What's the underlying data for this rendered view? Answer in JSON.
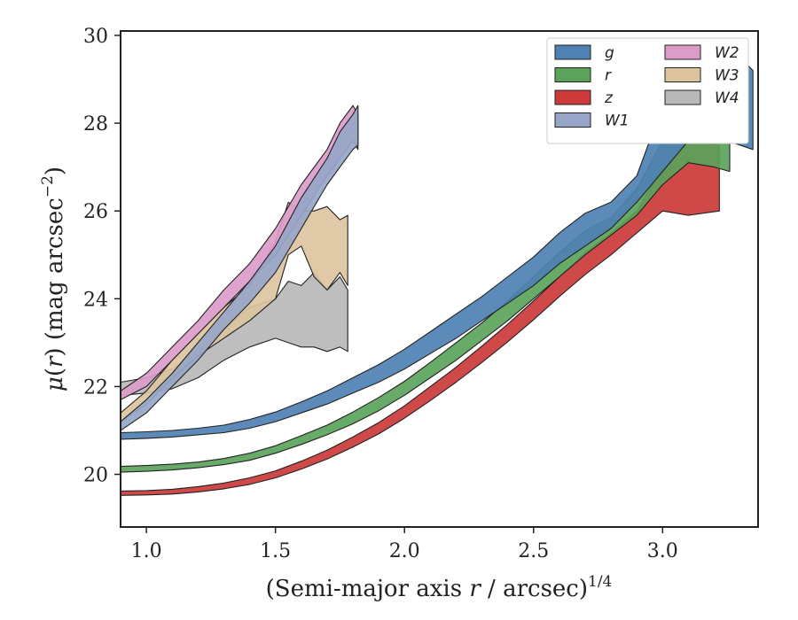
{
  "chart_data": {
    "type": "area",
    "xlabel": "(Semi-major axis r / arcsec)^1/4",
    "ylabel": "μ(r) (mag arcsec^−2)",
    "xlim": [
      0.9,
      3.37
    ],
    "ylim": [
      30.1,
      18.8
    ],
    "y_inverted": true,
    "xticks": [
      {
        "value": 1.0,
        "label": "1.0"
      },
      {
        "value": 1.5,
        "label": "1.5"
      },
      {
        "value": 2.0,
        "label": "2.0"
      },
      {
        "value": 2.5,
        "label": "2.5"
      },
      {
        "value": 3.0,
        "label": "3.0"
      }
    ],
    "yticks": [
      {
        "value": 20,
        "label": "20"
      },
      {
        "value": 22,
        "label": "22"
      },
      {
        "value": 24,
        "label": "24"
      },
      {
        "value": 26,
        "label": "26"
      },
      {
        "value": 28,
        "label": "28"
      },
      {
        "value": 30,
        "label": "30"
      }
    ],
    "grid": false,
    "legend_position": "top-right",
    "legend_columns": 2,
    "series": [
      {
        "name": "g",
        "color": "#4f81b3",
        "x": [
          0.9,
          1.0,
          1.1,
          1.2,
          1.3,
          1.4,
          1.5,
          1.6,
          1.7,
          1.8,
          1.9,
          2.0,
          2.1,
          2.2,
          2.3,
          2.4,
          2.5,
          2.6,
          2.7,
          2.8,
          2.9,
          3.0,
          3.1,
          3.2,
          3.3,
          3.35
        ],
        "lo": [
          20.8,
          20.82,
          20.85,
          20.9,
          20.95,
          21.05,
          21.2,
          21.4,
          21.6,
          21.85,
          22.1,
          22.4,
          22.75,
          23.1,
          23.5,
          23.9,
          24.3,
          24.8,
          25.2,
          25.6,
          26.2,
          26.9,
          27.6,
          27.7,
          27.5,
          27.4
        ],
        "hi": [
          20.95,
          20.97,
          21.0,
          21.05,
          21.12,
          21.25,
          21.42,
          21.65,
          21.9,
          22.2,
          22.5,
          22.85,
          23.25,
          23.65,
          24.05,
          24.5,
          24.95,
          25.5,
          25.95,
          26.2,
          26.8,
          28.4,
          29.2,
          29.4,
          29.5,
          29.2
        ]
      },
      {
        "name": "r",
        "color": "#5ba35b",
        "x": [
          0.9,
          1.0,
          1.1,
          1.2,
          1.3,
          1.4,
          1.5,
          1.6,
          1.7,
          1.8,
          1.9,
          2.0,
          2.1,
          2.2,
          2.3,
          2.4,
          2.5,
          2.6,
          2.7,
          2.8,
          2.9,
          3.0,
          3.1,
          3.2,
          3.26
        ],
        "lo": [
          20.05,
          20.07,
          20.1,
          20.15,
          20.22,
          20.32,
          20.48,
          20.68,
          20.9,
          21.15,
          21.45,
          21.8,
          22.2,
          22.6,
          23.05,
          23.5,
          24.0,
          24.5,
          25.0,
          25.45,
          25.9,
          26.6,
          27.1,
          27.0,
          26.9
        ],
        "hi": [
          20.18,
          20.2,
          20.23,
          20.28,
          20.36,
          20.48,
          20.65,
          20.88,
          21.12,
          21.42,
          21.75,
          22.12,
          22.55,
          23.0,
          23.45,
          23.95,
          24.5,
          25.05,
          25.55,
          25.85,
          26.5,
          27.6,
          28.4,
          28.5,
          28.2
        ]
      },
      {
        "name": "z",
        "color": "#cc3a3a",
        "x": [
          0.9,
          1.0,
          1.1,
          1.2,
          1.3,
          1.4,
          1.5,
          1.6,
          1.7,
          1.8,
          1.9,
          2.0,
          2.1,
          2.2,
          2.3,
          2.4,
          2.5,
          2.6,
          2.7,
          2.8,
          2.9,
          3.0,
          3.1,
          3.22
        ],
        "lo": [
          19.52,
          19.53,
          19.55,
          19.6,
          19.67,
          19.77,
          19.92,
          20.12,
          20.35,
          20.62,
          20.92,
          21.28,
          21.68,
          22.1,
          22.55,
          23.02,
          23.52,
          24.05,
          24.55,
          25.0,
          25.5,
          26.0,
          25.9,
          26.0
        ],
        "hi": [
          19.62,
          19.63,
          19.66,
          19.72,
          19.8,
          19.92,
          20.08,
          20.3,
          20.55,
          20.85,
          21.18,
          21.56,
          22.0,
          22.44,
          22.92,
          23.42,
          23.95,
          24.5,
          25.05,
          25.5,
          26.0,
          27.0,
          27.6,
          27.5
        ]
      },
      {
        "name": "W1",
        "color": "#97a6c8",
        "x": [
          0.9,
          1.0,
          1.1,
          1.2,
          1.3,
          1.4,
          1.5,
          1.6,
          1.7,
          1.75,
          1.8,
          1.82
        ],
        "lo": [
          21.0,
          21.4,
          22.0,
          22.6,
          23.3,
          23.9,
          24.6,
          25.6,
          26.6,
          27.0,
          27.4,
          27.5
        ],
        "hi": [
          21.2,
          21.7,
          22.3,
          23.0,
          23.7,
          24.4,
          25.2,
          26.3,
          27.2,
          27.8,
          28.2,
          28.4
        ]
      },
      {
        "name": "W2",
        "color": "#dc9cc9",
        "x": [
          0.9,
          1.0,
          1.1,
          1.2,
          1.3,
          1.4,
          1.5,
          1.6,
          1.7,
          1.75,
          1.8,
          1.82
        ],
        "lo": [
          21.7,
          22.0,
          22.6,
          23.2,
          23.8,
          24.4,
          25.0,
          25.9,
          26.8,
          27.2,
          27.6,
          27.4
        ],
        "hi": [
          21.9,
          22.3,
          22.9,
          23.5,
          24.2,
          24.8,
          25.6,
          26.6,
          27.4,
          28.0,
          28.4,
          28.2
        ]
      },
      {
        "name": "W3",
        "color": "#ddc49e",
        "x": [
          0.9,
          1.0,
          1.1,
          1.2,
          1.3,
          1.4,
          1.5,
          1.55,
          1.6,
          1.65,
          1.7,
          1.75,
          1.78
        ],
        "lo": [
          21.2,
          21.6,
          22.2,
          22.7,
          23.1,
          23.5,
          24.0,
          25.0,
          25.2,
          24.5,
          24.2,
          24.6,
          24.3
        ],
        "hi": [
          21.4,
          21.9,
          22.6,
          23.2,
          23.8,
          24.3,
          25.3,
          26.2,
          26.0,
          26.0,
          26.1,
          25.8,
          25.9
        ]
      },
      {
        "name": "W4",
        "color": "#b9b9b9",
        "x": [
          0.9,
          1.0,
          1.1,
          1.2,
          1.3,
          1.4,
          1.5,
          1.55,
          1.6,
          1.65,
          1.7,
          1.75,
          1.78
        ],
        "lo": [
          21.8,
          21.85,
          21.95,
          22.2,
          22.6,
          22.9,
          23.1,
          23.0,
          22.9,
          22.9,
          22.8,
          22.9,
          22.8
        ],
        "hi": [
          22.1,
          22.2,
          22.4,
          22.8,
          23.3,
          23.8,
          24.0,
          24.4,
          24.3,
          24.6,
          24.2,
          24.5,
          24.2
        ]
      }
    ]
  }
}
